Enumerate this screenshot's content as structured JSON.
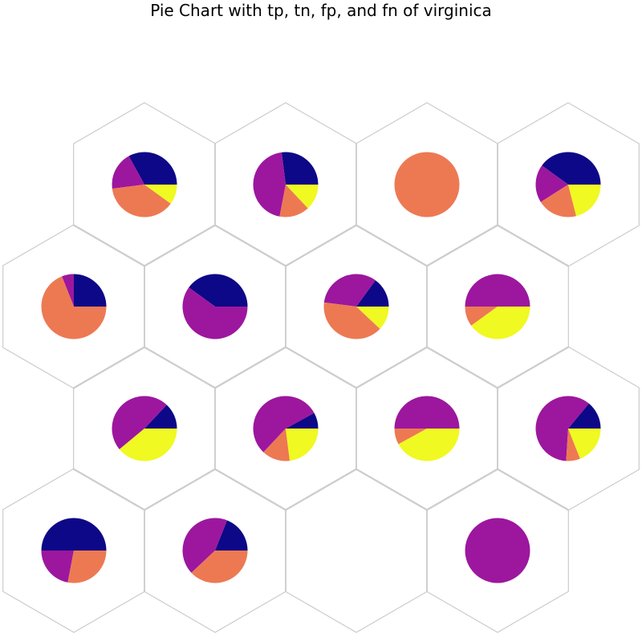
{
  "chart_data": {
    "type": "pie",
    "layout": "hexagonal-grid",
    "title": "Pie Chart with tp, tn, fp, and fn of virginica",
    "slice_order": [
      "tp",
      "tn",
      "fp",
      "fn"
    ],
    "colors": {
      "tp": "#0d0887",
      "tn": "#9c179e",
      "fp": "#ed7953",
      "fn": "#f0f921"
    },
    "grid": {
      "rows": 4,
      "cols": 4,
      "odd_rows_shifted": true
    },
    "cells": [
      {
        "row": 0,
        "col": 0,
        "values": {
          "tp": 0.33,
          "tn": 0.19,
          "fp": 0.38,
          "fn": 0.1
        }
      },
      {
        "row": 0,
        "col": 1,
        "values": {
          "tp": 0.27,
          "tn": 0.45,
          "fp": 0.15,
          "fn": 0.13
        }
      },
      {
        "row": 0,
        "col": 2,
        "values": {
          "tp": 0.0,
          "tn": 0.0,
          "fp": 1.0,
          "fn": 0.0
        }
      },
      {
        "row": 0,
        "col": 3,
        "values": {
          "tp": 0.4,
          "tn": 0.19,
          "fp": 0.2,
          "fn": 0.21
        }
      },
      {
        "row": 1,
        "col": 0,
        "values": {
          "tp": 0.25,
          "tn": 0.06,
          "fp": 0.69,
          "fn": 0.0
        }
      },
      {
        "row": 1,
        "col": 1,
        "values": {
          "tp": 0.4,
          "tn": 0.6,
          "fp": 0.0,
          "fn": 0.0
        }
      },
      {
        "row": 1,
        "col": 2,
        "values": {
          "tp": 0.15,
          "tn": 0.33,
          "fp": 0.4,
          "fn": 0.12
        }
      },
      {
        "row": 1,
        "col": 3,
        "values": {
          "tp": 0.0,
          "tn": 0.5,
          "fp": 0.1,
          "fn": 0.4
        }
      },
      {
        "row": 2,
        "col": 0,
        "values": {
          "tp": 0.13,
          "tn": 0.48,
          "fp": 0.0,
          "fn": 0.39
        }
      },
      {
        "row": 2,
        "col": 1,
        "values": {
          "tp": 0.08,
          "tn": 0.55,
          "fp": 0.14,
          "fn": 0.23
        }
      },
      {
        "row": 2,
        "col": 2,
        "values": {
          "tp": 0.0,
          "tn": 0.5,
          "fp": 0.08,
          "fn": 0.42
        }
      },
      {
        "row": 2,
        "col": 3,
        "values": {
          "tp": 0.14,
          "tn": 0.6,
          "fp": 0.07,
          "fn": 0.19
        }
      },
      {
        "row": 3,
        "col": 0,
        "values": {
          "tp": 0.5,
          "tn": 0.22,
          "fp": 0.28,
          "fn": 0.0
        }
      },
      {
        "row": 3,
        "col": 1,
        "values": {
          "tp": 0.19,
          "tn": 0.43,
          "fp": 0.38,
          "fn": 0.0
        }
      },
      {
        "row": 3,
        "col": 2,
        "values": null
      },
      {
        "row": 3,
        "col": 3,
        "values": {
          "tp": 0.0,
          "tn": 1.0,
          "fp": 0.0,
          "fn": 0.0
        }
      }
    ]
  }
}
